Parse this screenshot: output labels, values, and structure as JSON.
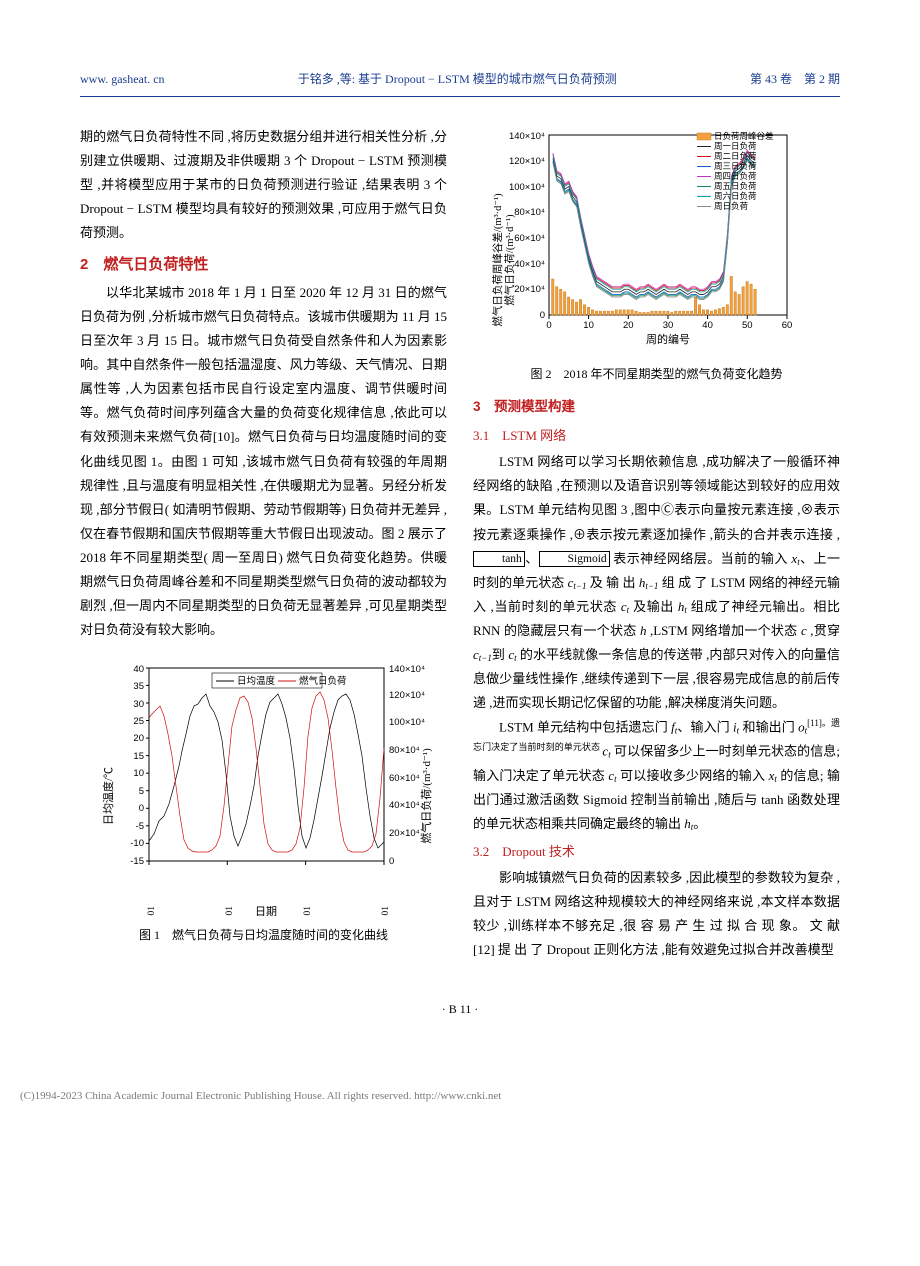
{
  "header": {
    "website": "www. gasheat. cn",
    "title": "于铭多 ,等: 基于 Dropout − LSTM 模型的城市燃气日负荷预测",
    "issue": "第 43 卷　第 2 期"
  },
  "col_left": {
    "p1": "期的燃气日负荷特性不同 ,将历史数据分组并进行相关性分析 ,分别建立供暖期、过渡期及非供暖期 3 个 Dropout − LSTM 预测模型 ,并将模型应用于某市的日负荷预测进行验证 ,结果表明 3 个 Dropout − LSTM 模型均具有较好的预测效果 ,可应用于燃气日负荷预测。",
    "h2_num": "2",
    "h2_text": "燃气日负荷特性",
    "p2": "以华北某城市 2018 年 1 月 1 日至 2020 年 12 月 31 日的燃气日负荷为例 ,分析城市燃气日负荷特点。该城市供暖期为 11 月 15 日至次年 3 月 15 日。城市燃气日负荷受自然条件和人为因素影响。其中自然条件一般包括温湿度、风力等级、天气情况、日期属性等 ,人为因素包括市民自行设定室内温度、调节供暖时间等。燃气负荷时间序列蕴含大量的负荷变化规律信息 ,依此可以有效预测未来燃气负荷[10]。燃气日负荷与日均温度随时间的变化曲线见图 1。由图 1 可知 ,该城市燃气日负荷有较强的年周期规律性 ,且与温度有明显相关性 ,在供暖期尤为显著。另经分析发现 ,部分节假日( 如清明节假期、劳动节假期等) 日负荷并无差异 ,仅在春节假期和国庆节假期等重大节假日出现波动。图 2 展示了 2018 年不同星期类型( 周一至周日) 燃气日负荷变化趋势。供暖期燃气日负荷周峰谷差和不同星期类型燃气日负荷的波动都较为剧烈 ,但一周内不同星期类型的日负荷无显著差异 ,可见星期类型对日负荷没有较大影响。",
    "fig1": {
      "caption": "图 1　燃气日负荷与日均温度随时间的变化曲线",
      "y_left_label": "日均温度/℃",
      "y_right_label": "燃气日负荷/(m³·d⁻¹)",
      "x_label": "日期",
      "legend": [
        "日均温度",
        "燃气日负荷"
      ],
      "x_ticks": [
        "2018-01-01",
        "2019-01-01",
        "2020-01-01",
        "2021-01-01"
      ],
      "y_left_ticks": [
        -15,
        -10,
        -5,
        0,
        5,
        10,
        15,
        20,
        25,
        30,
        35,
        40
      ],
      "y_right_ticks_raw": [
        0,
        20,
        40,
        60,
        80,
        100,
        120,
        140
      ],
      "y_right_scale_suffix": "×10⁴",
      "colors": {
        "temp": "#000000",
        "load": "#d01010",
        "axis": "#000000",
        "background": "#ffffff"
      },
      "line_width": 0.9
    }
  },
  "col_right": {
    "fig2": {
      "caption": "图 2　2018 年不同星期类型的燃气负荷变化趋势",
      "y_left_label": "燃气日负荷周峰谷差/(m³·d⁻¹)\n燃气日负荷/(m³·d⁻¹)",
      "x_label": "周的编号",
      "legend": [
        {
          "label": "日负荷周峰谷差",
          "color": "#f0a040",
          "type": "bar"
        },
        {
          "label": "周一日负荷",
          "color": "#222222",
          "type": "line"
        },
        {
          "label": "周二日负荷",
          "color": "#d01010",
          "type": "line"
        },
        {
          "label": "周三日负荷",
          "color": "#1060d0",
          "type": "line"
        },
        {
          "label": "周四日负荷",
          "color": "#d030c0",
          "type": "line"
        },
        {
          "label": "周五日负荷",
          "color": "#109050",
          "type": "line"
        },
        {
          "label": "周六日负荷",
          "color": "#10a0a0",
          "type": "line"
        },
        {
          "label": "周日负荷",
          "color": "#888888",
          "type": "line"
        }
      ],
      "x_ticks": [
        0,
        10,
        20,
        30,
        40,
        50,
        60
      ],
      "y_ticks_raw": [
        0,
        20,
        40,
        60,
        80,
        100,
        120,
        140
      ],
      "y_scale_suffix": "×10⁴",
      "bar_data": [
        28,
        22,
        20,
        18,
        14,
        12,
        10,
        12,
        8,
        6,
        4,
        3,
        3,
        3,
        3,
        3,
        4,
        4,
        4,
        4,
        4,
        3,
        2,
        2,
        2,
        3,
        3,
        3,
        3,
        3,
        2,
        3,
        3,
        3,
        3,
        3,
        14,
        8,
        4,
        4,
        3,
        4,
        5,
        6,
        8,
        30,
        18,
        16,
        22,
        26,
        24,
        20
      ],
      "line_data_approx": [
        122,
        108,
        106,
        98,
        100,
        92,
        88,
        72,
        58,
        44,
        34,
        26,
        24,
        22,
        20,
        18,
        18,
        18,
        20,
        20,
        18,
        16,
        18,
        18,
        20,
        18,
        16,
        18,
        20,
        18,
        18,
        18,
        20,
        18,
        16,
        18,
        18,
        16,
        16,
        18,
        22,
        22,
        24,
        30,
        60,
        104,
        112,
        114,
        118,
        124,
        120,
        118
      ],
      "colors": {
        "axis": "#000000",
        "background": "#ffffff",
        "bar": "#f0a040",
        "bar_border": "#d08020"
      },
      "bar_width": 0.55,
      "line_width": 0.9
    },
    "h3_num": "3",
    "h3_text": "预测模型构建",
    "s31_num": "3.1",
    "s31_text": "LSTM 网络",
    "p3a": "LSTM 网络可以学习长期依赖信息 ,成功解决了一般循环神经网络的缺陷 ,在预测以及语音识别等领域能达到较好的应用效果。LSTM 单元结构见图 3 ,图中Ⓒ表示向量按元素连接  ,⊗表示按元素逐乘操作 ,⊕表示按元素逐加操作 ,箭头的合并表示连接 ,",
    "p3b_tanh": "tanh",
    "p3b_sigmoid": "Sigmoid",
    "p3b_mid": " 表示神经网络层。当前的输入 ",
    "p3c": "、上一时刻的单元状态 ",
    "p3d": " 及 输 出 ",
    "p3e": " 组 成 了 LSTM 网络的神经元输入 ,当前时刻的单元状态 ",
    "p3f": " 及输出 ",
    "p3g": " 组成了神经元输出。相比 RNN 的隐藏层只有一个状态 ",
    "p3h": " ,LSTM 网络增加一个状态 ",
    "p3i": " ,贯穿 ",
    "p3j": "到 ",
    "p3k": " 的水平线就像一条信息的传送带 ,内部只对传入的向量信息做少量线性操作 ,继续传递到下一层 ,很容易完成信息的前后传递 ,进而实现长期记忆保留的功能 ,解决梯度消失问题。",
    "p4a": "LSTM 单元结构中包括遗忘门 ",
    "p4b": "、输入门 ",
    "p4c": " 和输出门 ",
    "p4d": "[11]。遗忘门决定了当前时刻的单元状态 ",
    "p4e": " 可以保留多少上一时刻单元状态的信息; 输入门决定了单元状态 ",
    "p4f": " 可以接收多少网络的输入 ",
    "p4g": " 的信息; 输出门通过激活函数 Sigmoid 控制当前输出 ,随后与 tanh 函数处理的单元状态相乘共同确定最终的输出 ",
    "p4h": "。",
    "s32_num": "3.2",
    "s32_text": "Dropout 技术",
    "p5": "影响城镇燃气日负荷的因素较多 ,因此模型的参数较为复杂 ,且对于 LSTM 网络这种规模较大的神经网络来说 ,本文样本数据较少 ,训练样本不够充足 ,很 容 易 产 生 过 拟 合 现 象。 文 献 [12] 提 出 了 Dropout 正则化方法 ,能有效避免过拟合并改善模型",
    "symbols": {
      "x_t": "x",
      "x_t_sub": "t",
      "c_tm1": "c",
      "c_tm1_sub": "t−1",
      "h_tm1": "h",
      "h_tm1_sub": "t−1",
      "c_t": "c",
      "c_t_sub": "t",
      "h_t": "h",
      "h_t_sub": "t",
      "h": "h",
      "c": "c",
      "f_t": "f",
      "f_t_sub": "t",
      "i_t": "i",
      "i_t_sub": "t",
      "o_t": "o",
      "o_t_sub": "t"
    }
  },
  "footer": "· B 11 ·",
  "watermark": "(C)1994-2023 China Academic Journal Electronic Publishing House. All rights reserved.    http://www.cnki.net"
}
